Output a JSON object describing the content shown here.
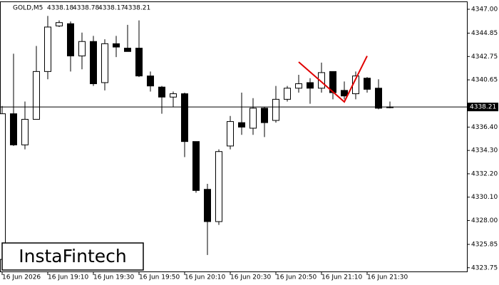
{
  "chart_data": {
    "type": "candlestick",
    "symbol": "GOLD,M5",
    "header_values": [
      4338.18,
      4338.78,
      4338.17,
      4338.21
    ],
    "logo": "InstaFintech",
    "categories": [
      "16 Jun 2026",
      null,
      null,
      null,
      "16 Jun 19:10",
      null,
      null,
      null,
      "16 Jun 19:30",
      null,
      null,
      null,
      "16 Jun 19:50",
      null,
      null,
      null,
      "16 Jun 20:10",
      null,
      null,
      null,
      "16 Jun 20:30",
      null,
      null,
      null,
      "16 Jun 20:50",
      null,
      null,
      null,
      "16 Jun 21:10",
      null,
      null,
      null,
      "16 Jun 21:30",
      null,
      null
    ],
    "open": [
      4324.5,
      4337.6,
      4334.8,
      4337.1,
      4341.4,
      4345.5,
      4345.7,
      4342.8,
      4344.1,
      4340.4,
      4343.9,
      4343.5,
      4343.5,
      4341.0,
      4340.0,
      4339.1,
      4339.4,
      4335.1,
      4330.8,
      4327.9,
      4334.7,
      4336.8,
      4336.3,
      4338.1,
      4337.0,
      4338.9,
      4339.9,
      4340.4,
      4339.9,
      4341.4,
      4339.7,
      4339.4,
      4340.8,
      4339.9,
      4338.2
    ],
    "high": [
      4338.3,
      4343.0,
      4338.7,
      4343.7,
      4346.4,
      4346.0,
      4345.9,
      4344.9,
      4344.6,
      4344.3,
      4344.6,
      4345.6,
      4346.0,
      4341.4,
      4340.1,
      4339.6,
      4339.5,
      4335.1,
      4331.3,
      4334.4,
      4337.4,
      4339.5,
      4339.0,
      4338.2,
      4340.1,
      4340.1,
      4341.1,
      4340.8,
      4342.2,
      4341.4,
      4340.5,
      4341.4,
      4340.9,
      4340.7,
      4338.7
    ],
    "low": [
      4324.3,
      4334.7,
      4334.4,
      4337.1,
      4340.7,
      4345.4,
      4341.4,
      4341.6,
      4340.1,
      4339.7,
      4342.7,
      4343.2,
      4340.9,
      4339.6,
      4337.6,
      4338.2,
      4333.7,
      4330.5,
      4324.9,
      4327.6,
      4334.4,
      4335.7,
      4335.7,
      4335.5,
      4336.8,
      4338.7,
      4339.5,
      4338.5,
      4339.5,
      4338.9,
      4338.9,
      4338.9,
      4339.5,
      4338.0,
      4338.1
    ],
    "close": [
      4337.6,
      4334.8,
      4337.1,
      4341.4,
      4345.4,
      4345.8,
      4342.8,
      4344.1,
      4340.3,
      4343.9,
      4343.6,
      4343.2,
      4341.0,
      4340.1,
      4339.1,
      4339.4,
      4335.1,
      4330.7,
      4327.9,
      4334.2,
      4336.9,
      4336.4,
      4338.1,
      4336.8,
      4338.9,
      4339.9,
      4340.3,
      4339.9,
      4341.3,
      4339.5,
      4339.2,
      4341.0,
      4339.8,
      4338.1,
      4338.21
    ],
    "up_color": "#ffffff",
    "down_color": "#000000",
    "pattern": {
      "color": "#e00000",
      "x": [
        26,
        30,
        32
      ],
      "values": [
        4342.26,
        4338.67,
        4342.8
      ]
    },
    "last_price": 4338.21,
    "ylim": [
      4323.35,
      4347.64
    ],
    "yticks": [
      {
        "value": 4347.0,
        "label": "4347.00"
      },
      {
        "value": 4344.85,
        "label": "4344.85"
      },
      {
        "value": 4342.75,
        "label": "4342.75"
      },
      {
        "value": 4340.65,
        "label": "4340.65"
      },
      {
        "value": 4336.4,
        "label": "4336.40"
      },
      {
        "value": 4334.3,
        "label": "4334.30"
      },
      {
        "value": 4332.2,
        "label": "4332.20"
      },
      {
        "value": 4330.1,
        "label": "4330.10"
      },
      {
        "value": 4328.0,
        "label": "4328.00"
      },
      {
        "value": 4325.85,
        "label": "4325.85"
      },
      {
        "value": 4323.75,
        "label": "4323.75"
      }
    ]
  }
}
